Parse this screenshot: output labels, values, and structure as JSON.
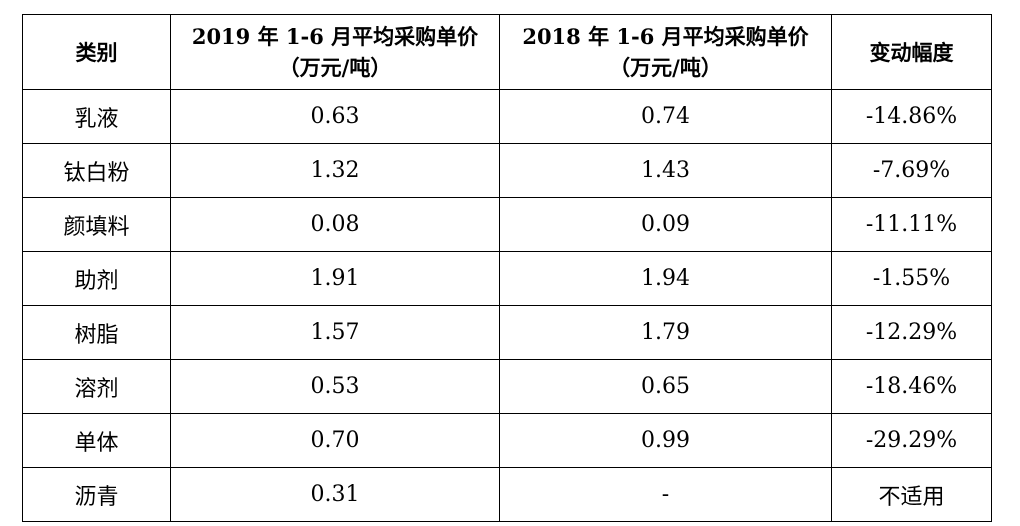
{
  "table": {
    "headers": [
      {
        "line1": "类别",
        "line2": ""
      },
      {
        "line1": "2019 年 1-6 月平均采购单价",
        "line2": "（万元/吨）"
      },
      {
        "line1": "2018 年 1-6 月平均采购单价",
        "line2": "（万元/吨）"
      },
      {
        "line1": "变动幅度",
        "line2": ""
      }
    ],
    "rows": [
      {
        "category": "乳液",
        "price_2019": "0.63",
        "price_2018": "0.74",
        "change": "-14.86%"
      },
      {
        "category": "钛白粉",
        "price_2019": "1.32",
        "price_2018": "1.43",
        "change": "-7.69%"
      },
      {
        "category": "颜填料",
        "price_2019": "0.08",
        "price_2018": "0.09",
        "change": "-11.11%"
      },
      {
        "category": "助剂",
        "price_2019": "1.91",
        "price_2018": "1.94",
        "change": "-1.55%"
      },
      {
        "category": "树脂",
        "price_2019": "1.57",
        "price_2018": "1.79",
        "change": "-12.29%"
      },
      {
        "category": "溶剂",
        "price_2019": "0.53",
        "price_2018": "0.65",
        "change": "-18.46%"
      },
      {
        "category": "单体",
        "price_2019": "0.70",
        "price_2018": "0.99",
        "change": "-29.29%"
      },
      {
        "category": "沥青",
        "price_2019": "0.31",
        "price_2018": "-",
        "change": "不适用"
      }
    ]
  }
}
